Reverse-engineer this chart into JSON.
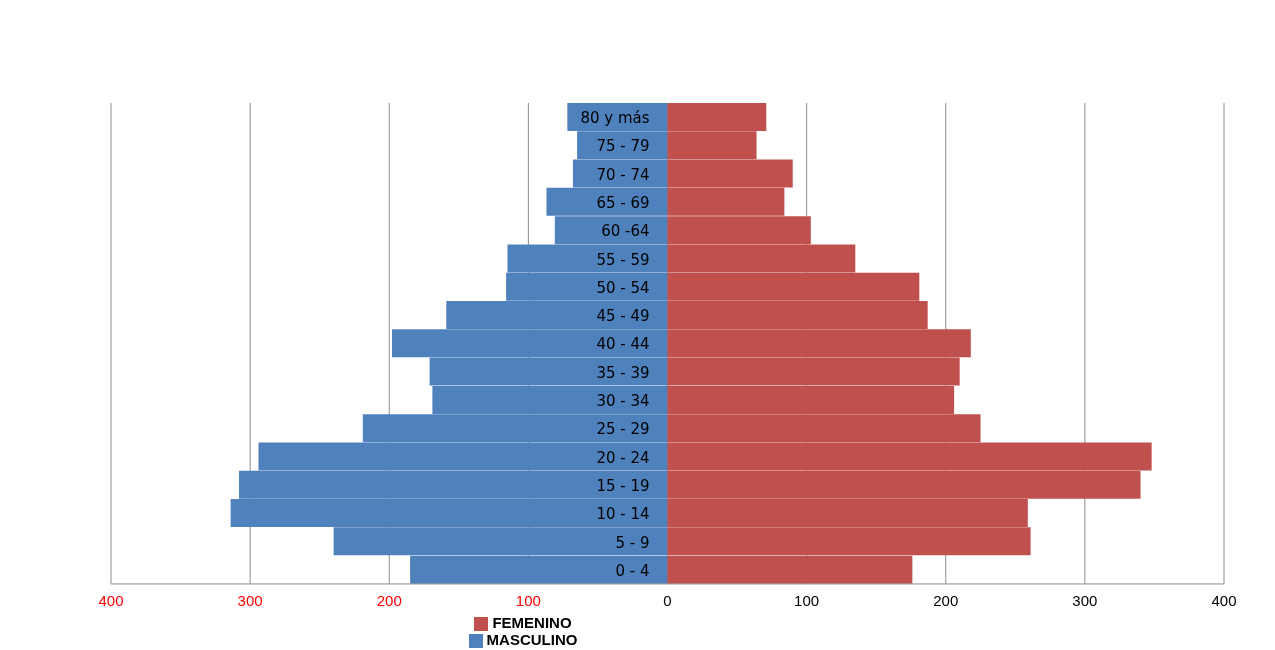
{
  "chart_data": {
    "type": "bar",
    "orientation": "horizontal",
    "stacked": true,
    "categories": [
      "80 y más",
      "75 - 79",
      "70 - 74",
      "65 - 69",
      "60 -64",
      "55 - 59",
      "50 - 54",
      "45 - 49",
      "40 - 44",
      "35 - 39",
      "30 - 34",
      "25 - 29",
      "20 - 24",
      "15 - 19",
      "10 - 14",
      "5 - 9",
      "0 - 4"
    ],
    "series": [
      {
        "name": "MASCULINO",
        "color": "#4f81bd",
        "values": [
          -72,
          -65,
          -68,
          -87,
          -81,
          -115,
          -116,
          -159,
          -198,
          -171,
          -169,
          -219,
          -294,
          -308,
          -314,
          -240,
          -185
        ]
      },
      {
        "name": "FEMENINO",
        "color": "#c0504d",
        "values": [
          71,
          64,
          90,
          84,
          103,
          135,
          181,
          187,
          218,
          210,
          206,
          225,
          348,
          340,
          259,
          261,
          176
        ]
      }
    ],
    "xlim": [
      -400,
      400
    ],
    "xticks": [
      {
        "value": -400,
        "label": "400"
      },
      {
        "value": -300,
        "label": "300"
      },
      {
        "value": -200,
        "label": "200"
      },
      {
        "value": -100,
        "label": "100"
      },
      0,
      100,
      200,
      300,
      400
    ],
    "grid": "x",
    "legend": "bottom"
  }
}
